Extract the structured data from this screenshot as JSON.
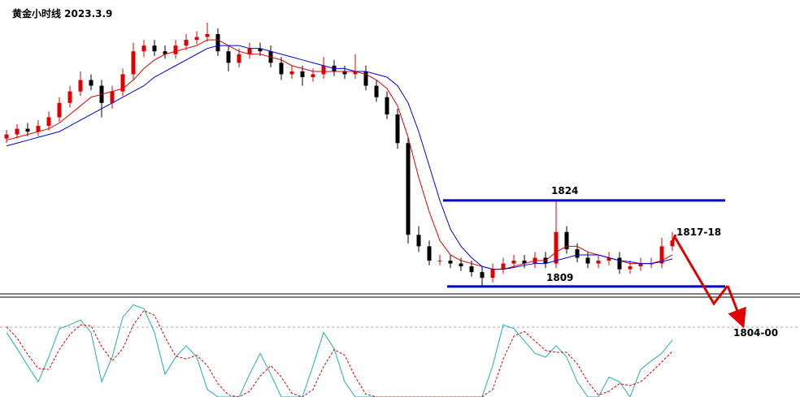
{
  "chart_data": {
    "type": "candlestick",
    "title": "黄金小时线 2023.3.9",
    "ylim": [
      1807.7,
      1858.95
    ],
    "open": [
      1834.8,
      1835.5,
      1836.5,
      1836,
      1837,
      1838.5,
      1841,
      1843,
      1845,
      1844,
      1841,
      1843,
      1846,
      1850,
      1851,
      1850,
      1849.5,
      1851,
      1852,
      1852.5,
      1853,
      1850,
      1848,
      1849.5,
      1850.5,
      1850,
      1848,
      1846,
      1846.5,
      1845.5,
      1846,
      1847.5,
      1846.5,
      1846,
      1846.5,
      1844,
      1842,
      1839,
      1834,
      1818,
      1816,
      1813.5,
      1813.5,
      1813,
      1812.5,
      1811.5,
      1810.5,
      1812,
      1813,
      1813.5,
      1813,
      1814,
      1813,
      1818.5,
      1815.5,
      1814,
      1813,
      1813.5,
      1814,
      1812,
      1812.5,
      1813,
      1813,
      1816
    ],
    "high": [
      1836.3,
      1837.3,
      1837.5,
      1838,
      1839.5,
      1842,
      1844,
      1846.5,
      1846,
      1845,
      1844,
      1847,
      1851.5,
      1852,
      1852,
      1851,
      1852,
      1853,
      1853.5,
      1855,
      1854,
      1851,
      1850.5,
      1851.5,
      1851.5,
      1851,
      1849,
      1847.5,
      1847.5,
      1847,
      1849,
      1848.5,
      1847.5,
      1849.5,
      1847.5,
      1845,
      1843,
      1840,
      1835,
      1819.5,
      1817,
      1814.5,
      1814.5,
      1814,
      1813.5,
      1812.5,
      1813,
      1814,
      1814.5,
      1814.5,
      1815,
      1815,
      1823.8,
      1819.5,
      1816.5,
      1815,
      1814.5,
      1815,
      1815,
      1813.5,
      1814,
      1814,
      1817.5,
      1818.5
    ],
    "low": [
      1834,
      1834.8,
      1835.2,
      1835.2,
      1836.2,
      1837.7,
      1840.2,
      1842.2,
      1843.2,
      1838.5,
      1840,
      1842.2,
      1845,
      1849,
      1849.2,
      1848.7,
      1848.7,
      1850.2,
      1851.2,
      1851.7,
      1849.2,
      1846.5,
      1847.2,
      1848.7,
      1849.2,
      1847.2,
      1845,
      1845.2,
      1844,
      1844.7,
      1845.2,
      1845.7,
      1845.2,
      1845.2,
      1843.2,
      1841.2,
      1838.2,
      1833,
      1816.5,
      1815,
      1812.7,
      1812.7,
      1812.2,
      1811.7,
      1810.7,
      1809,
      1809.7,
      1811.2,
      1812.2,
      1812.2,
      1812.2,
      1812.2,
      1812.2,
      1814.7,
      1813.2,
      1812.2,
      1812.2,
      1812.7,
      1811.2,
      1811.2,
      1811.7,
      1812.2,
      1812.2,
      1815.2
    ],
    "close": [
      1835.5,
      1836.5,
      1836,
      1837,
      1838.5,
      1841,
      1843,
      1845,
      1844,
      1841,
      1843,
      1846,
      1850,
      1851,
      1850,
      1849.5,
      1851,
      1852,
      1852.5,
      1853,
      1850,
      1848,
      1849.5,
      1850.5,
      1850,
      1848,
      1846,
      1846.5,
      1845.5,
      1846,
      1847.5,
      1846.5,
      1846,
      1846.5,
      1844,
      1842,
      1839,
      1834,
      1818,
      1816,
      1813.5,
      1813.5,
      1813,
      1812.5,
      1811.5,
      1810.5,
      1812,
      1813,
      1813.5,
      1813,
      1814,
      1813,
      1818.5,
      1815.5,
      1814,
      1813,
      1813.5,
      1814,
      1812,
      1812.5,
      1813,
      1813,
      1816,
      1817
    ],
    "up_color": "#e00000",
    "down_color": "#000000",
    "series": [
      {
        "color": "#e00000",
        "values": [
          1834.5,
          1835,
          1835.5,
          1836,
          1836.5,
          1837.5,
          1839,
          1840.5,
          1842,
          1842.5,
          1843,
          1843.5,
          1845,
          1847,
          1848.5,
          1849.5,
          1850,
          1850.5,
          1851,
          1852,
          1852,
          1851,
          1850,
          1849.5,
          1849.5,
          1849,
          1848.5,
          1847.5,
          1847,
          1846.5,
          1846.5,
          1846.5,
          1846.5,
          1846.5,
          1846,
          1845,
          1843.5,
          1840.5,
          1835,
          1828,
          1822,
          1817,
          1814.5,
          1813.5,
          1813,
          1812.5,
          1812,
          1812,
          1812.5,
          1813,
          1813.5,
          1813.5,
          1815,
          1816,
          1816,
          1815,
          1814.5,
          1814,
          1813.5,
          1813,
          1813,
          1813,
          1813.5,
          1814.5
        ]
      },
      {
        "color": "#0000dd",
        "values": [
          1833.5,
          1834,
          1834.5,
          1835,
          1835.5,
          1836,
          1837,
          1838,
          1839,
          1840,
          1841,
          1842,
          1843,
          1844,
          1845.5,
          1846.5,
          1847.5,
          1848.5,
          1849.5,
          1850.5,
          1851,
          1851,
          1851,
          1850.5,
          1850.5,
          1850,
          1849.5,
          1849,
          1848.5,
          1848,
          1847.5,
          1847,
          1847,
          1846.5,
          1846.5,
          1846,
          1845.5,
          1844,
          1841,
          1836,
          1830,
          1824,
          1819,
          1816,
          1814,
          1812.5,
          1812,
          1812,
          1812.3,
          1812.7,
          1813,
          1813,
          1813.5,
          1814,
          1814.5,
          1814.5,
          1814.5,
          1814,
          1813.5,
          1813.3,
          1813,
          1813,
          1813.3,
          1813.8
        ]
      }
    ],
    "levels": [
      1824,
      1809
    ],
    "level_color": "#0000cc",
    "annotations": [
      "1817-18",
      "1804-00"
    ],
    "oscillator": {
      "ylim": [
        0,
        100
      ],
      "series": [
        {
          "color": "#20b0b0",
          "dashed": false,
          "values": [
            68,
            51,
            33,
            16,
            42,
            72,
            76,
            81,
            68,
            16,
            42,
            84,
            97,
            93,
            68,
            24,
            42,
            54,
            42,
            8,
            0,
            0,
            0,
            24,
            46,
            24,
            0,
            0,
            0,
            33,
            68,
            51,
            16,
            0,
            0,
            0,
            0,
            0,
            0,
            0,
            0,
            0,
            0,
            0,
            0,
            0,
            33,
            76,
            72,
            59,
            46,
            42,
            54,
            42,
            16,
            0,
            0,
            21,
            16,
            0,
            29,
            38,
            46,
            60
          ]
        },
        {
          "color": "#e00000",
          "dashed": true,
          "values": [
            74,
            62,
            45,
            30,
            29,
            50,
            66,
            76,
            75,
            53,
            38,
            51,
            76,
            91,
            86,
            63,
            43,
            40,
            44,
            33,
            14,
            2,
            0,
            6,
            22,
            33,
            21,
            4,
            0,
            8,
            32,
            50,
            44,
            21,
            3,
            0,
            0,
            0,
            0,
            0,
            0,
            0,
            0,
            0,
            0,
            0,
            8,
            40,
            64,
            69,
            59,
            49,
            47,
            47,
            35,
            16,
            2,
            6,
            14,
            12,
            16,
            26,
            37,
            48
          ]
        }
      ]
    }
  }
}
